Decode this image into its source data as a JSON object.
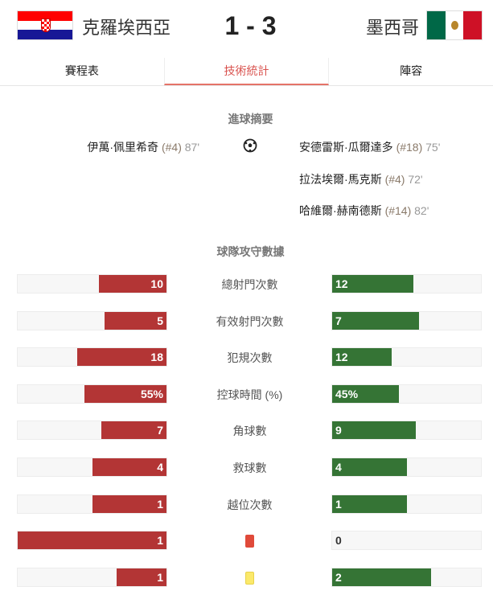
{
  "header": {
    "home": {
      "name": "克羅埃西亞",
      "flag": "croatia-flag",
      "score": 1
    },
    "away": {
      "name": "墨西哥",
      "flag": "mexico-flag",
      "score": 3
    },
    "score_text": "1 - 3"
  },
  "tabs": [
    {
      "label": "賽程表",
      "active": false
    },
    {
      "label": "技術統計",
      "active": true
    },
    {
      "label": "陣容",
      "active": false
    }
  ],
  "goals": {
    "title": "進球摘要",
    "icon": "soccer-ball-icon",
    "home": [
      {
        "player": "伊萬·佩里希奇",
        "number": "(#4)",
        "minute": "87'"
      }
    ],
    "away": [
      {
        "player": "安德雷斯·瓜爾達多",
        "number": "(#18)",
        "minute": "75'"
      },
      {
        "player": "拉法埃爾·馬克斯",
        "number": "(#4)",
        "minute": "72'"
      },
      {
        "player": "哈維爾·赫南德斯",
        "number": "(#14)",
        "minute": "82'"
      }
    ]
  },
  "stats": {
    "title": "球隊攻守數據",
    "colors": {
      "home": "#b33535",
      "away": "#357435",
      "red_card": "#e04a3a",
      "yellow_card": "#fbe96a"
    },
    "rows": [
      {
        "label": "總射門次數",
        "home": "10",
        "away": "12"
      },
      {
        "label": "有效射門次數",
        "home": "5",
        "away": "7"
      },
      {
        "label": "犯規次數",
        "home": "18",
        "away": "12"
      },
      {
        "label": "控球時間 (%)",
        "home": "55%",
        "away": "45%"
      },
      {
        "label": "角球數",
        "home": "7",
        "away": "9"
      },
      {
        "label": "救球數",
        "home": "4",
        "away": "4"
      },
      {
        "label": "越位次數",
        "home": "1",
        "away": "1"
      },
      {
        "label": "",
        "icon": "red-card-icon",
        "home": "1",
        "away": "0"
      },
      {
        "label": "",
        "icon": "yellow-card-icon",
        "home": "1",
        "away": "2"
      }
    ]
  }
}
